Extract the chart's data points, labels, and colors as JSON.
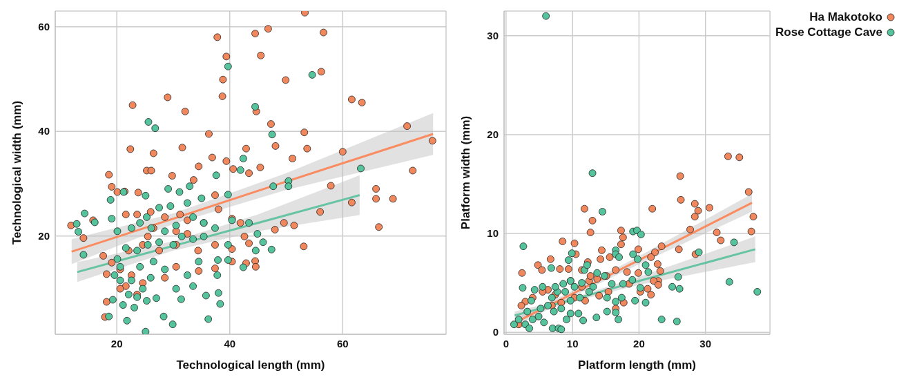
{
  "chart_data": [
    {
      "type": "scatter",
      "xlabel": "Technological length (mm)",
      "ylabel": "Technological width (mm)",
      "xlim": [
        9.1,
        78.3
      ],
      "ylim": [
        1.2,
        63
      ],
      "xticks": [
        20,
        40,
        60
      ],
      "yticks": [
        20,
        40,
        60
      ],
      "grid": true,
      "legend": false,
      "series": [
        {
          "marker": "circle",
          "color": "#f1875c",
          "x": [
            53.3,
            46.8,
            44.5,
            56.6,
            37.8,
            39.4,
            45.5,
            56.2,
            38.8,
            49.9,
            29.0,
            38.7,
            22.8,
            32.1,
            61.6,
            63.4,
            44.7,
            47.3,
            71.4,
            75.9,
            36.3,
            53.2,
            48.1,
            31.6,
            22.4,
            60.0,
            53.7,
            51.1,
            72.4,
            36.9,
            45.4,
            57.9,
            65.9,
            68.9,
            65.9,
            61.6,
            66.4,
            56.0,
            53.1,
            48.0,
            49.6,
            51.4,
            44.5,
            18.2,
            17.9,
            18.2,
            18.6,
            11.9,
            15.8,
            14.1,
            25.3,
            26.1,
            29.8,
            26.5,
            34.5,
            40.6,
            39.4,
            42.9,
            43.4,
            37.4,
            33.6,
            21.4,
            23.8,
            19.1,
            20.1,
            21.6,
            23.6,
            26.0,
            28.5,
            31.2,
            32.5,
            35.4,
            38.0,
            40.4,
            41.9,
            42.6,
            43.4,
            40.4,
            37.4,
            34.4,
            30.5,
            27.5,
            25.5,
            24.6,
            22.1,
            20.6,
            22.6,
            24.6,
            28.5,
            30.5,
            34.5,
            37.4,
            40.4,
            42.9,
            44.6,
            21.6,
            23.6,
            20.6,
            17.6,
            19.1,
            30.5,
            32.5,
            26.5
          ],
          "values": [
            62.7,
            59.6,
            58.7,
            58.9,
            58.0,
            54.3,
            54.5,
            51.4,
            49.9,
            49.8,
            46.5,
            46.7,
            45.0,
            43.8,
            46.1,
            45.5,
            43.8,
            41.4,
            41.0,
            38.2,
            39.5,
            39.8,
            37.2,
            36.9,
            36.6,
            36.1,
            36.7,
            34.8,
            32.5,
            35.0,
            33.1,
            29.6,
            29.0,
            27.1,
            27.1,
            26.4,
            21.7,
            24.6,
            18.0,
            21.2,
            22.5,
            22.0,
            15.2,
            7.4,
            4.5,
            12.7,
            31.7,
            22.0,
            23.0,
            19.6,
            32.5,
            32.5,
            31.5,
            35.8,
            33.3,
            32.8,
            34.3,
            36.7,
            32.0,
            27.8,
            30.7,
            28.5,
            28.3,
            29.4,
            28.4,
            24.1,
            24.1,
            24.6,
            23.6,
            24.1,
            23.0,
            22.5,
            25.1,
            23.3,
            22.5,
            19.9,
            18.6,
            17.5,
            18.3,
            17.2,
            18.3,
            17.2,
            19.9,
            18.3,
            17.2,
            13.6,
            12.5,
            11.0,
            12.0,
            14.1,
            13.3,
            13.8,
            15.1,
            14.8,
            14.1,
            10.4,
            8.8,
            9.9,
            16.2,
            14.9,
            20.9,
            20.4,
            21.5
          ]
        },
        {
          "marker": "circle",
          "color": "#55c39c",
          "x": [
            39.7,
            54.6,
            44.5,
            25.6,
            26.8,
            47.5,
            63.2,
            41.9,
            42.4,
            37.6,
            50.4,
            50.4,
            47.7,
            39.7,
            32.9,
            31.1,
            29.1,
            25.1,
            21.2,
            18.9,
            14.3,
            12.9,
            14.1,
            13.2,
            16.1,
            35.0,
            32.5,
            40.4,
            43.4,
            44.9,
            45.9,
            47.4,
            44.6,
            42.4,
            39.7,
            39.7,
            37.9,
            37.8,
            35.8,
            38.0,
            38.3,
            36.2,
            29.9,
            25.1,
            28.3,
            21.8,
            18.6,
            19.3,
            21.1,
            23.1,
            25.3,
            31.4,
            27.0,
            30.5,
            33.5,
            34.5,
            32.5,
            28.5,
            26.5,
            24.1,
            20.6,
            20.1,
            21.6,
            23.6,
            25.5,
            27.5,
            30.0,
            31.5,
            33.5,
            35.4,
            37.4,
            35.4,
            33.5,
            30.5,
            28.5,
            26.1,
            24.1,
            22.6,
            20.1,
            19.1,
            25.3,
            29.5,
            27.5,
            22.6,
            24.6,
            20.6,
            19.6,
            23.6,
            22.1,
            26.0
          ],
          "values": [
            52.4,
            50.8,
            44.7,
            41.8,
            40.6,
            39.4,
            32.9,
            32.6,
            34.8,
            31.6,
            30.5,
            29.5,
            29.5,
            27.9,
            29.5,
            28.4,
            29.0,
            27.7,
            28.4,
            26.9,
            24.3,
            22.3,
            16.4,
            20.8,
            22.6,
            27.2,
            26.3,
            23.0,
            22.5,
            20.4,
            18.8,
            17.4,
            17.2,
            14.0,
            18.3,
            15.4,
            15.4,
            12.5,
            8.6,
            9.1,
            7.0,
            4.1,
            3.1,
            1.7,
            4.6,
            3.8,
            4.6,
            7.8,
            6.8,
            6.3,
            7.6,
            7.9,
            8.1,
            9.9,
            10.4,
            15.1,
            12.5,
            13.6,
            15.1,
            14.1,
            14.1,
            15.6,
            17.7,
            17.2,
            18.3,
            18.8,
            18.3,
            19.9,
            19.4,
            19.9,
            21.5,
            22.5,
            23.6,
            22.0,
            20.9,
            21.5,
            22.5,
            21.5,
            20.9,
            23.3,
            23.6,
            25.7,
            25.4,
            11.5,
            9.9,
            11.5,
            12.5,
            8.3,
            8.8,
            12.0
          ]
        },
        {
          "type": "line",
          "color": "#fa8c62",
          "x": [
            12,
            30,
            50,
            76
          ],
          "values": [
            17.0,
            23.3,
            30.4,
            39.5
          ],
          "lower": [
            14.6,
            22.3,
            28.8,
            35.5
          ],
          "upper": [
            19.4,
            24.3,
            32.0,
            43.5
          ]
        },
        {
          "type": "line",
          "color": "#66c4a3",
          "x": [
            13,
            30,
            45,
            63
          ],
          "values": [
            13.1,
            18.1,
            22.5,
            27.8
          ],
          "lower": [
            11.2,
            17.2,
            20.9,
            24.0
          ],
          "upper": [
            15.0,
            19.0,
            24.1,
            31.6
          ]
        }
      ]
    },
    {
      "type": "scatter",
      "xlabel": "Platform length (mm)",
      "ylabel": "Platform width (mm)",
      "xlim": [
        -0.3,
        39.7
      ],
      "ylim": [
        -0.2,
        32.5
      ],
      "xticks": [
        0,
        10,
        20,
        30
      ],
      "yticks": [
        0,
        10,
        20,
        30
      ],
      "grid": true,
      "legend": "top right",
      "series": [
        {
          "marker": "circle",
          "name": "Ha Makotoko",
          "color": "#f1875c",
          "x": [
            33.4,
            35.1,
            26.2,
            36.5,
            26.3,
            28.4,
            28.9,
            28.4,
            30.6,
            37.2,
            11.8,
            13.0,
            12.7,
            22.0,
            17.3,
            17.6,
            27.7,
            31.7,
            36.9,
            32.3,
            8.5,
            10.3,
            17.3,
            23.4,
            26.0,
            22.4,
            28.5,
            19.9,
            14.4,
            10.5,
            6.7,
            2.4,
            4.8,
            5.4,
            8.1,
            9.4,
            12.3,
            15.6,
            14.2,
            21.8,
            22.8,
            23.2,
            22.9,
            22.2,
            22.9,
            21.3,
            21.8,
            17.7,
            19.9,
            18.2,
            16.5,
            15.1,
            13.7,
            12.5,
            11.4,
            9.7,
            8.9,
            7.4,
            6.3,
            5.5,
            4.0,
            2.9,
            2.3,
            1.9,
            6.9,
            8.3,
            10.3,
            11.9,
            14.0,
            15.4,
            16.5,
            20.2,
            11.4,
            12.7,
            18.5
          ],
          "values": [
            17.8,
            17.7,
            15.8,
            14.2,
            13.4,
            13.0,
            12.3,
            11.7,
            12.6,
            11.7,
            12.5,
            11.3,
            10.1,
            12.5,
            10.3,
            9.6,
            10.4,
            10.1,
            10.2,
            9.3,
            9.2,
            9.0,
            8.9,
            8.7,
            8.4,
            8.1,
            7.9,
            8.4,
            8.3,
            7.9,
            7.4,
            6.0,
            6.8,
            6.3,
            6.4,
            6.4,
            7.1,
            7.6,
            7.4,
            7.6,
            6.9,
            6.2,
            5.2,
            5.2,
            4.8,
            4.4,
            3.8,
            3.0,
            6.0,
            6.1,
            6.3,
            5.7,
            5.4,
            5.2,
            4.6,
            5.2,
            null,
            3.8,
            4.3,
            4.1,
            3.5,
            3.1,
            2.7,
            0.8,
            2.7,
            3.0,
            3.5,
            3.2,
            3.7,
            4.1,
            2.4,
            4.1,
            6.3,
            5.7,
            4.9
          ]
        },
        {
          "marker": "circle",
          "name": "Rose Cottage Cave",
          "color": "#55c39c",
          "x": [
            6.0,
            13.0,
            14.5,
            19.1,
            19.7,
            20.3,
            2.6,
            34.3,
            29.0,
            19.1,
            19.8,
            16.5,
            16.5,
            17.0,
            9.9,
            9.4,
            6.8,
            2.5,
            25.9,
            26.1,
            25.0,
            33.6,
            37.8,
            23.4,
            25.7,
            21.0,
            16.9,
            19.4,
            20.2,
            19.0,
            21.4,
            21.0,
            17.4,
            16.5,
            16.5,
            15.2,
            15.2,
            13.6,
            11.6,
            11.8,
            12.2,
            13.7,
            14.8,
            15.9,
            17.6,
            13.1,
            11.4,
            10.3,
            8.9,
            7.7,
            6.9,
            5.5,
            4.3,
            3.8,
            3.2,
            2.9,
            3.5,
            4.0,
            1.2,
            1.9,
            4.9,
            5.7,
            7.0,
            7.9,
            8.3,
            9.1,
            9.7,
            10.9,
            7.2,
            6.3,
            5.2,
            8.3,
            9.7,
            11.1,
            12.5,
            8.6,
            7.4,
            9.7
          ],
          "values": [
            32.0,
            16.1,
            12.2,
            10.2,
            10.3,
            9.9,
            8.7,
            9.1,
            8.1,
            7.9,
            7.4,
            8.3,
            7.9,
            7.6,
            8.0,
            7.3,
            6.5,
            4.5,
            5.6,
            4.4,
            4.6,
            5.1,
            4.1,
            1.3,
            1.1,
            3.0,
            1.3,
            3.2,
            4.5,
            5.3,
            6.1,
            6.8,
            3.5,
            3.1,
            2.0,
            3.5,
            2.1,
            1.5,
            1.2,
            6.3,
            6.8,
            6.0,
            5.7,
            4.9,
            4.9,
            4.6,
            5.0,
            4.6,
            4.1,
            4.1,
            3.5,
            4.6,
            4.3,
            3.2,
            2.1,
            0.8,
            0.4,
            1.3,
            0.8,
            1.3,
            1.6,
            1.0,
            0.4,
            0.4,
            0.3,
            1.3,
            1.9,
            1.9,
            2.1,
            2.7,
            2.4,
            2.4,
            3.2,
            3.5,
            4.1,
            4.9,
            4.6,
            5.2
          ]
        },
        {
          "type": "line",
          "color": "#fa8c62",
          "x": [
            2.0,
            10,
            20,
            37
          ],
          "values": [
            1.2,
            3.9,
            7.3,
            13.1
          ],
          "lower": [
            0.8,
            3.6,
            6.9,
            12.2
          ],
          "upper": [
            1.6,
            4.2,
            7.7,
            14.0
          ]
        },
        {
          "type": "line",
          "color": "#66c4a3",
          "x": [
            1.3,
            10,
            20,
            37.5
          ],
          "values": [
            1.7,
            3.3,
            5.2,
            8.4
          ],
          "lower": [
            1.3,
            3.1,
            4.8,
            7.1
          ],
          "upper": [
            2.1,
            3.5,
            5.6,
            9.7
          ]
        }
      ]
    }
  ]
}
